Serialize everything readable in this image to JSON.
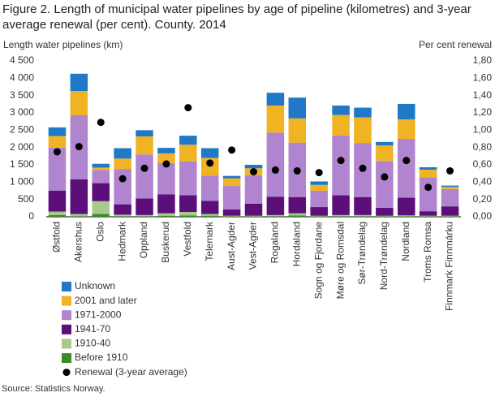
{
  "chart_data": {
    "type": "bar",
    "stacked": true,
    "title": "Figure 2. Length of municipal water pipelines by age of pipeline (kilometres) and 3-year average renewal (per cent). County. 2014",
    "y_label": "Length water pipelines  (km)",
    "y2_label": "Per cent renewal",
    "source": "Source: Statistics Norway.",
    "categories": [
      "Østfold",
      "Akershus",
      "Oslo",
      "Hedmark",
      "Oppland",
      "Buskerud",
      "Vestfold",
      "Telemark",
      "Aust-Agder",
      "Vest-Agder",
      "Rogaland",
      "Hordaland",
      "Sogn og Fjordane",
      "Møre og Romsdal",
      "Sør-Trøndelag",
      "Nord-Trøndelag",
      "Nordland",
      "Troms Romsa",
      "Finnmark Finnmárku"
    ],
    "series": [
      {
        "name": "Before 1910",
        "color": "#3a8c2a",
        "values": [
          50,
          20,
          80,
          20,
          20,
          30,
          40,
          30,
          10,
          10,
          20,
          40,
          10,
          20,
          20,
          10,
          10,
          10,
          10
        ]
      },
      {
        "name": "1910-40",
        "color": "#a8c98a",
        "values": [
          100,
          60,
          370,
          40,
          30,
          70,
          100,
          50,
          20,
          20,
          30,
          60,
          20,
          30,
          30,
          20,
          30,
          20,
          20
        ]
      },
      {
        "name": "1941-70",
        "color": "#5c0f7a",
        "values": [
          600,
          1000,
          520,
          300,
          480,
          550,
          480,
          380,
          180,
          350,
          530,
          470,
          250,
          570,
          520,
          230,
          510,
          130,
          270
        ]
      },
      {
        "name": "1971-2000",
        "color": "#b084cf",
        "values": [
          1250,
          1850,
          380,
          1020,
          1270,
          900,
          980,
          730,
          680,
          820,
          1850,
          1570,
          470,
          1730,
          1560,
          1350,
          1700,
          980,
          500
        ]
      },
      {
        "name": "2001 and later",
        "color": "#f0b323",
        "values": [
          330,
          700,
          70,
          300,
          520,
          280,
          480,
          510,
          220,
          200,
          780,
          700,
          170,
          590,
          740,
          450,
          560,
          220,
          60
        ]
      },
      {
        "name": "Unknown",
        "color": "#1f78c8",
        "values": [
          250,
          500,
          110,
          300,
          180,
          160,
          260,
          280,
          70,
          100,
          370,
          600,
          100,
          270,
          280,
          100,
          450,
          70,
          40
        ]
      },
      {
        "name": "Renewal (3-year average)",
        "color": "#000000",
        "type": "scatter",
        "axis": "y2",
        "values": [
          0.75,
          0.81,
          1.09,
          0.44,
          0.56,
          0.61,
          1.26,
          0.62,
          0.77,
          0.52,
          0.54,
          0.53,
          0.51,
          0.65,
          0.56,
          0.46,
          0.65,
          0.34,
          0.53
        ]
      }
    ],
    "ylim": [
      0,
      4500
    ],
    "yticks": [
      0,
      {
        "value": 500,
        "label": "500"
      },
      {
        "value": 1000,
        "label": "1 000"
      },
      {
        "value": 1500,
        "label": "1 500"
      },
      {
        "value": 2000,
        "label": "2 000"
      },
      {
        "value": 2500,
        "label": "2 500"
      },
      {
        "value": 3000,
        "label": "3 000"
      },
      {
        "value": 3500,
        "label": "3 500"
      },
      {
        "value": 4000,
        "label": "4 000"
      },
      {
        "value": 4500,
        "label": "4 500"
      }
    ],
    "y2lim": [
      0,
      1.8
    ],
    "y2ticks": [
      {
        "value": 0,
        "label": "0,00"
      },
      {
        "value": 0.2,
        "label": "0,20"
      },
      {
        "value": 0.4,
        "label": "0,40"
      },
      {
        "value": 0.6,
        "label": "0,60"
      },
      {
        "value": 0.8,
        "label": "0,80"
      },
      {
        "value": 1,
        "label": "1,00"
      },
      {
        "value": 1.2,
        "label": "1,20"
      },
      {
        "value": 1.4,
        "label": "1,40"
      },
      {
        "value": 1.6,
        "label": "1,60"
      },
      {
        "value": 1.8,
        "label": "1,80"
      }
    ],
    "grid": false
  }
}
